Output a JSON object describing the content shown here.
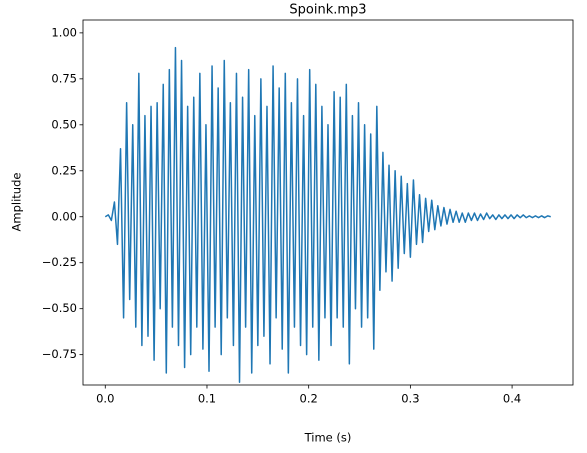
{
  "chart_data": {
    "type": "line",
    "title": "Spoink.mp3",
    "x_label": "Time (s)",
    "y_label": "Amplitude",
    "x": [
      0.0,
      0.003,
      0.006,
      0.009,
      0.012,
      0.015,
      0.018,
      0.021,
      0.024,
      0.027,
      0.03,
      0.033,
      0.036,
      0.039,
      0.042,
      0.045,
      0.048,
      0.051,
      0.054,
      0.057,
      0.06,
      0.063,
      0.066,
      0.069,
      0.072,
      0.075,
      0.078,
      0.081,
      0.084,
      0.087,
      0.09,
      0.093,
      0.096,
      0.099,
      0.102,
      0.105,
      0.108,
      0.111,
      0.114,
      0.117,
      0.12,
      0.123,
      0.126,
      0.129,
      0.132,
      0.135,
      0.138,
      0.141,
      0.144,
      0.147,
      0.15,
      0.153,
      0.156,
      0.159,
      0.162,
      0.165,
      0.168,
      0.171,
      0.174,
      0.177,
      0.18,
      0.183,
      0.186,
      0.189,
      0.192,
      0.195,
      0.198,
      0.201,
      0.204,
      0.207,
      0.21,
      0.213,
      0.216,
      0.219,
      0.222,
      0.225,
      0.228,
      0.231,
      0.234,
      0.237,
      0.24,
      0.243,
      0.246,
      0.249,
      0.252,
      0.255,
      0.258,
      0.261,
      0.264,
      0.267,
      0.27,
      0.273,
      0.276,
      0.279,
      0.282,
      0.285,
      0.288,
      0.291,
      0.294,
      0.297,
      0.3,
      0.303,
      0.306,
      0.309,
      0.312,
      0.315,
      0.318,
      0.321,
      0.324,
      0.327,
      0.33,
      0.333,
      0.336,
      0.339,
      0.342,
      0.345,
      0.348,
      0.351,
      0.354,
      0.357,
      0.36,
      0.363,
      0.366,
      0.369,
      0.372,
      0.375,
      0.378,
      0.381,
      0.384,
      0.387,
      0.39,
      0.393,
      0.396,
      0.399,
      0.402,
      0.405,
      0.408,
      0.411,
      0.414,
      0.417,
      0.42,
      0.423,
      0.426,
      0.429,
      0.432,
      0.435,
      0.438
    ],
    "series": [
      {
        "name": "Amplitude",
        "color": "#1f77b4",
        "values": [
          0.0,
          0.01,
          -0.02,
          0.08,
          -0.15,
          0.37,
          -0.55,
          0.62,
          -0.45,
          0.5,
          -0.6,
          0.78,
          -0.7,
          0.55,
          -0.65,
          0.6,
          -0.78,
          0.62,
          -0.5,
          0.72,
          -0.85,
          0.8,
          -0.6,
          0.92,
          -0.7,
          0.85,
          -0.82,
          0.6,
          -0.75,
          0.65,
          -0.6,
          0.78,
          -0.72,
          0.5,
          -0.84,
          0.82,
          -0.6,
          0.7,
          -0.75,
          0.85,
          -0.55,
          0.62,
          -0.7,
          0.78,
          -0.9,
          0.65,
          -0.6,
          0.8,
          -0.85,
          0.55,
          -0.7,
          0.75,
          -0.65,
          0.6,
          -0.8,
          0.82,
          -0.55,
          0.7,
          -0.72,
          0.78,
          -0.85,
          0.62,
          -0.6,
          0.75,
          -0.7,
          0.55,
          -0.75,
          0.8,
          -0.6,
          0.72,
          -0.78,
          0.6,
          -0.55,
          0.5,
          -0.7,
          0.68,
          -0.55,
          0.65,
          -0.6,
          0.72,
          -0.8,
          0.55,
          -0.5,
          0.62,
          -0.6,
          0.5,
          -0.55,
          0.45,
          -0.72,
          0.6,
          -0.4,
          0.35,
          -0.3,
          0.28,
          -0.35,
          0.25,
          -0.28,
          0.22,
          -0.2,
          0.18,
          -0.22,
          0.2,
          -0.15,
          0.12,
          -0.14,
          0.1,
          -0.08,
          0.09,
          -0.07,
          0.06,
          -0.05,
          0.05,
          -0.04,
          0.04,
          -0.03,
          0.03,
          -0.03,
          0.02,
          -0.03,
          0.02,
          -0.02,
          0.02,
          -0.02,
          0.015,
          -0.015,
          0.02,
          -0.01,
          0.01,
          -0.015,
          0.01,
          -0.01,
          0.01,
          -0.01,
          0.01,
          -0.01,
          0.01,
          -0.005,
          0.01,
          -0.005,
          0.005,
          -0.005,
          0.005,
          -0.005,
          0.005,
          -0.005,
          0.005,
          0.0
        ]
      }
    ],
    "xlim": [
      -0.0219,
      0.4599
    ],
    "xticks": [
      {
        "value": 0,
        "label": "0.0"
      },
      0.1,
      0.2,
      0.3,
      0.4
    ],
    "ylim": [
      -0.915,
      1.07
    ],
    "yticks": [
      {
        "value": -0.75,
        "label": "−0.75"
      },
      {
        "value": -0.5,
        "label": "−0.50"
      },
      {
        "value": -0.25,
        "label": "−0.25"
      },
      {
        "value": 0,
        "label": "0.00"
      },
      {
        "value": 0.25,
        "label": "0.25"
      },
      {
        "value": 0.5,
        "label": "0.50"
      },
      {
        "value": 0.75,
        "label": "0.75"
      },
      {
        "value": 1,
        "label": "1.00"
      }
    ]
  }
}
